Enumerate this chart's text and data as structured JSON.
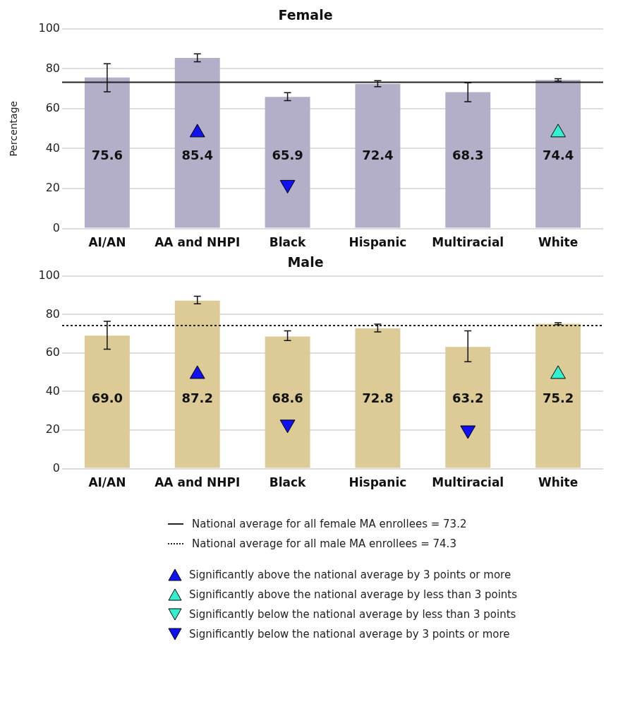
{
  "chart_data": [
    {
      "type": "bar",
      "title": "Female",
      "ylabel": "Percentage",
      "categories": [
        "AI/AN",
        "AA and NHPI",
        "Black",
        "Hispanic",
        "Multiracial",
        "White"
      ],
      "ylim": [
        0,
        100
      ],
      "yticks": [
        0,
        20,
        40,
        60,
        80,
        100
      ],
      "grid": "y",
      "legend": false,
      "series": [
        {
          "color": "#b3afc8",
          "values": [
            75.6,
            85.4,
            65.9,
            72.4,
            68.3,
            74.4
          ],
          "value_labels": [
            "75.6",
            "85.4",
            "65.9",
            "72.4",
            "68.3",
            "74.4"
          ],
          "errors": [
            [
              68.5,
              82.5
            ],
            [
              83.5,
              87.5
            ],
            [
              64,
              68
            ],
            [
              71,
              74
            ],
            [
              63.5,
              73
            ],
            [
              73.8,
              75
            ]
          ]
        },
        {
          "type": "scatter",
          "marker": "triangle",
          "color": "#1010f0",
          "values": [
            null,
            48,
            null,
            null,
            null,
            null
          ]
        },
        {
          "type": "scatter",
          "marker": "triangle",
          "color": "#30f0d0",
          "values": [
            null,
            null,
            null,
            null,
            null,
            48
          ]
        },
        {
          "type": "scatter",
          "marker": "triangle-down",
          "color": "#30f0d0",
          "values": [
            null,
            null,
            null,
            null,
            null,
            null
          ]
        },
        {
          "type": "scatter",
          "marker": "triangle-down",
          "color": "#1010f0",
          "values": [
            null,
            null,
            22,
            null,
            null,
            null
          ]
        }
      ],
      "ref_lines": [
        {
          "axis": "y",
          "value": 73.2,
          "label": "National average for all female MA enrollees = 73.2",
          "line_style": "solid",
          "color": "#222222"
        }
      ]
    },
    {
      "type": "bar",
      "title": "Male",
      "categories": [
        "AI/AN",
        "AA and NHPI",
        "Black",
        "Hispanic",
        "Multiracial",
        "White"
      ],
      "ylim": [
        0,
        100
      ],
      "yticks": [
        0,
        20,
        40,
        60,
        80,
        100
      ],
      "grid": "y",
      "legend": "bottom",
      "series": [
        {
          "color": "#dccb96",
          "values": [
            69.0,
            87.2,
            68.6,
            72.8,
            63.2,
            75.2
          ],
          "value_labels": [
            "69.0",
            "87.2",
            "68.6",
            "72.8",
            "63.2",
            "75.2"
          ],
          "errors": [
            [
              62,
              76.5
            ],
            [
              85.5,
              89.5
            ],
            [
              66.5,
              71.5
            ],
            [
              71,
              75
            ],
            [
              55.5,
              71.5
            ],
            [
              74.7,
              75.7
            ]
          ]
        },
        {
          "type": "scatter",
          "marker": "triangle",
          "color": "#1010f0",
          "name": "Significantly above the national average by 3 points or more",
          "values": [
            null,
            49,
            null,
            null,
            null,
            null
          ]
        },
        {
          "type": "scatter",
          "marker": "triangle",
          "color": "#30f0d0",
          "name": "Significantly above the national average by less than 3 points",
          "values": [
            null,
            null,
            null,
            null,
            null,
            49
          ]
        },
        {
          "type": "scatter",
          "marker": "triangle-down",
          "color": "#30f0d0",
          "name": "Significantly below the national average by less than 3 points",
          "values": [
            null,
            null,
            null,
            null,
            null,
            null
          ]
        },
        {
          "type": "scatter",
          "marker": "triangle-down",
          "color": "#1010f0",
          "name": "Significantly below the national average by 3 points or more",
          "values": [
            null,
            null,
            23,
            null,
            20,
            null
          ]
        }
      ],
      "ref_lines": [
        {
          "axis": "y",
          "value": 74.3,
          "label": "National average for all male MA enrollees = 74.3",
          "line_style": "dotted",
          "color": "#222222"
        }
      ]
    }
  ]
}
